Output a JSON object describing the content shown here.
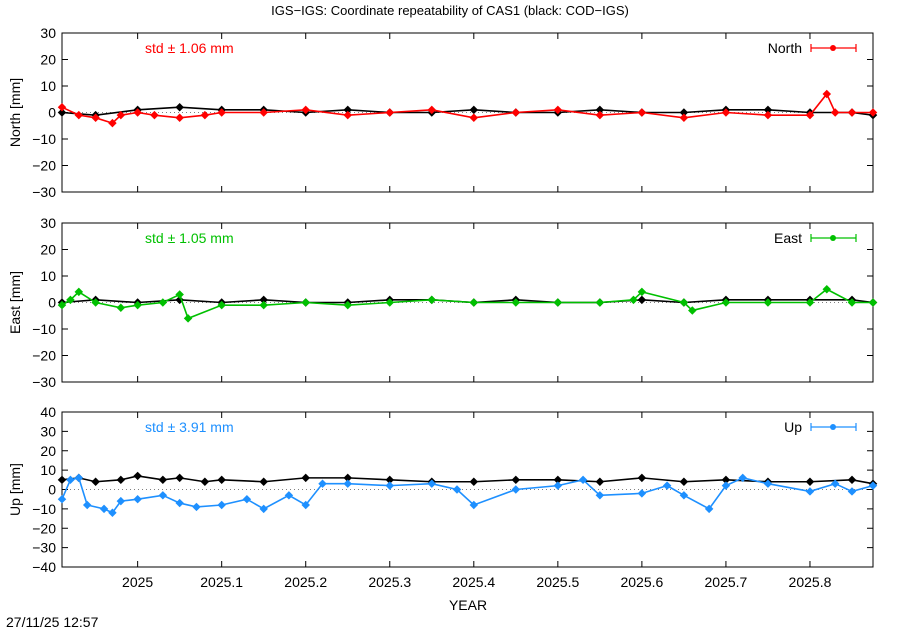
{
  "title": "IGS−IGS: Coordinate repeatability of CAS1 (black: COD−IGS)",
  "timestamp": "27/11/25 12:57",
  "x_axis": {
    "label": "YEAR",
    "range": [
      2024.91,
      2025.875
    ],
    "ticks": [
      2025,
      2025.1,
      2025.2,
      2025.3,
      2025.4,
      2025.5,
      2025.6,
      2025.7,
      2025.8
    ],
    "tick_labels": [
      "2025",
      "2025.1",
      "2025.2",
      "2025.3",
      "2025.4",
      "2025.5",
      "2025.6",
      "2025.7",
      "2025.8"
    ]
  },
  "chart_data": [
    {
      "type": "scatter",
      "panel": "north",
      "ylabel": "North [mm]",
      "ylim": [
        -30,
        30
      ],
      "yticks": [
        30,
        20,
        10,
        0,
        -10,
        -20,
        -30
      ],
      "ytick_labels": [
        "30",
        "20",
        "10",
        "0",
        "−10",
        "−20",
        "−30"
      ],
      "std_label": "std ± 1.06 mm",
      "legend": "North",
      "legend_position": "top-right",
      "color": "#ff0000",
      "reference_color": "#000000",
      "series": [
        {
          "name": "North",
          "color": "#ff0000",
          "x": [
            2024.91,
            2024.93,
            2024.95,
            2024.97,
            2024.98,
            2025.0,
            2025.02,
            2025.05,
            2025.08,
            2025.1,
            2025.15,
            2025.2,
            2025.25,
            2025.3,
            2025.35,
            2025.4,
            2025.45,
            2025.5,
            2025.55,
            2025.6,
            2025.65,
            2025.7,
            2025.75,
            2025.8,
            2025.82,
            2025.83,
            2025.85,
            2025.875
          ],
          "y": [
            2,
            -1,
            -2,
            -4,
            -1,
            0,
            -1,
            -2,
            -1,
            0,
            0,
            1,
            -1,
            0,
            1,
            -2,
            0,
            1,
            -1,
            0,
            -2,
            0,
            -1,
            -1,
            7,
            0,
            0,
            0
          ]
        },
        {
          "name": "COD−IGS",
          "color": "#000000",
          "x": [
            2024.91,
            2024.95,
            2025.0,
            2025.05,
            2025.1,
            2025.15,
            2025.2,
            2025.25,
            2025.3,
            2025.35,
            2025.4,
            2025.45,
            2025.5,
            2025.55,
            2025.6,
            2025.65,
            2025.7,
            2025.75,
            2025.8,
            2025.85,
            2025.875
          ],
          "y": [
            0,
            -1,
            1,
            2,
            1,
            1,
            0,
            1,
            0,
            0,
            1,
            0,
            0,
            1,
            0,
            0,
            1,
            1,
            0,
            0,
            -1
          ]
        }
      ]
    },
    {
      "type": "scatter",
      "panel": "east",
      "ylabel": "East [mm]",
      "ylim": [
        -30,
        30
      ],
      "yticks": [
        30,
        20,
        10,
        0,
        -10,
        -20,
        -30
      ],
      "ytick_labels": [
        "30",
        "20",
        "10",
        "0",
        "−10",
        "−20",
        "−30"
      ],
      "std_label": "std ± 1.05 mm",
      "legend": "East",
      "legend_position": "top-right",
      "color": "#00c000",
      "reference_color": "#000000",
      "series": [
        {
          "name": "East",
          "color": "#00c000",
          "x": [
            2024.91,
            2024.92,
            2024.93,
            2024.95,
            2024.98,
            2025.0,
            2025.03,
            2025.05,
            2025.06,
            2025.1,
            2025.15,
            2025.2,
            2025.25,
            2025.3,
            2025.35,
            2025.4,
            2025.45,
            2025.5,
            2025.55,
            2025.59,
            2025.6,
            2025.65,
            2025.66,
            2025.7,
            2025.75,
            2025.8,
            2025.82,
            2025.85,
            2025.875
          ],
          "y": [
            -1,
            1,
            4,
            0,
            -2,
            -1,
            0,
            3,
            -6,
            -1,
            -1,
            0,
            -1,
            0,
            1,
            0,
            0,
            0,
            0,
            1,
            4,
            0,
            -3,
            0,
            0,
            0,
            5,
            0,
            0
          ]
        },
        {
          "name": "COD−IGS",
          "color": "#000000",
          "x": [
            2024.91,
            2024.95,
            2025.0,
            2025.05,
            2025.1,
            2025.15,
            2025.2,
            2025.25,
            2025.3,
            2025.35,
            2025.4,
            2025.45,
            2025.5,
            2025.55,
            2025.6,
            2025.65,
            2025.7,
            2025.75,
            2025.8,
            2025.85,
            2025.875
          ],
          "y": [
            0,
            1,
            0,
            1,
            0,
            1,
            0,
            0,
            1,
            1,
            0,
            1,
            0,
            0,
            1,
            0,
            1,
            1,
            1,
            1,
            0
          ]
        }
      ]
    },
    {
      "type": "scatter",
      "panel": "up",
      "ylabel": "Up [mm]",
      "ylim": [
        -40,
        40
      ],
      "yticks": [
        40,
        30,
        20,
        10,
        0,
        -10,
        -20,
        -30,
        -40
      ],
      "ytick_labels": [
        "40",
        "30",
        "20",
        "10",
        "0",
        "−10",
        "−20",
        "−30",
        "−40"
      ],
      "std_label": "std ± 3.91 mm",
      "legend": "Up",
      "legend_position": "top-right",
      "color": "#1e90ff",
      "reference_color": "#000000",
      "series": [
        {
          "name": "Up",
          "color": "#1e90ff",
          "x": [
            2024.91,
            2024.92,
            2024.93,
            2024.94,
            2024.96,
            2024.97,
            2024.98,
            2025.0,
            2025.03,
            2025.05,
            2025.07,
            2025.1,
            2025.13,
            2025.15,
            2025.18,
            2025.2,
            2025.22,
            2025.25,
            2025.3,
            2025.35,
            2025.38,
            2025.4,
            2025.45,
            2025.5,
            2025.53,
            2025.55,
            2025.6,
            2025.63,
            2025.65,
            2025.68,
            2025.7,
            2025.72,
            2025.75,
            2025.8,
            2025.83,
            2025.85,
            2025.875
          ],
          "y": [
            -5,
            5,
            6,
            -8,
            -10,
            -12,
            -6,
            -5,
            -3,
            -7,
            -9,
            -8,
            -5,
            -10,
            -3,
            -8,
            3,
            3,
            2,
            3,
            0,
            -8,
            0,
            2,
            5,
            -3,
            -2,
            2,
            -3,
            -10,
            2,
            6,
            3,
            -1,
            3,
            -1,
            2
          ]
        },
        {
          "name": "COD−IGS",
          "color": "#000000",
          "x": [
            2024.91,
            2024.93,
            2024.95,
            2024.98,
            2025.0,
            2025.03,
            2025.05,
            2025.08,
            2025.1,
            2025.15,
            2025.2,
            2025.25,
            2025.3,
            2025.35,
            2025.4,
            2025.45,
            2025.5,
            2025.55,
            2025.6,
            2025.65,
            2025.7,
            2025.75,
            2025.8,
            2025.85,
            2025.875
          ],
          "y": [
            5,
            6,
            4,
            5,
            7,
            5,
            6,
            4,
            5,
            4,
            6,
            6,
            5,
            4,
            4,
            5,
            5,
            4,
            6,
            4,
            5,
            4,
            4,
            5,
            3
          ]
        }
      ]
    }
  ]
}
